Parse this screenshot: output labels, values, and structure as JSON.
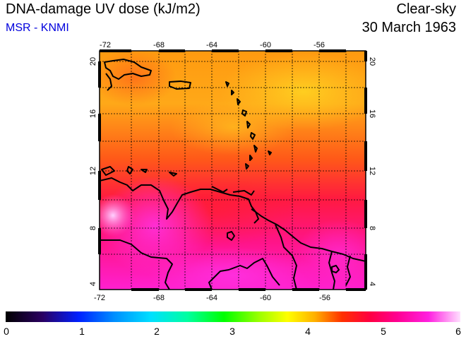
{
  "header": {
    "title": "DNA-damage UV dose (kJ/m2)",
    "subtitle": "MSR - KNMI",
    "condition": "Clear-sky",
    "date": "30 March 1963"
  },
  "map": {
    "lon_ticks": [
      "-72",
      "-68",
      "-64",
      "-60",
      "-56"
    ],
    "lat_ticks": [
      "20",
      "16",
      "12",
      "8",
      "4"
    ]
  },
  "colorbar": {
    "ticks": [
      "0",
      "1",
      "2",
      "3",
      "4",
      "5",
      "6"
    ],
    "range": [
      0,
      6
    ]
  },
  "colors": {
    "subtitle": "#0000dd",
    "coast": "#000000"
  }
}
